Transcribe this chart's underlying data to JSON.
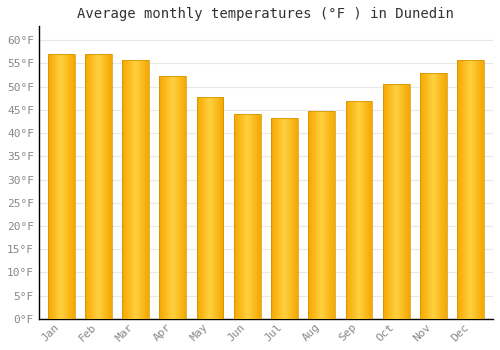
{
  "months": [
    "Jan",
    "Feb",
    "Mar",
    "Apr",
    "May",
    "Jun",
    "Jul",
    "Aug",
    "Sep",
    "Oct",
    "Nov",
    "Dec"
  ],
  "values": [
    57.0,
    57.0,
    55.8,
    52.2,
    47.8,
    44.2,
    43.2,
    44.8,
    47.0,
    50.5,
    53.0,
    55.8
  ],
  "background_color": "#FFFFFF",
  "grid_color": "#E8E8E8",
  "bar_left_color": "#F5A800",
  "bar_center_color": "#FFD040",
  "bar_right_color": "#F5A800",
  "spine_color": "#000000",
  "tick_color": "#888888",
  "title": "Average monthly temperatures (°F ) in Dunedin",
  "ylim": [
    0,
    63
  ],
  "yticks": [
    0,
    5,
    10,
    15,
    20,
    25,
    30,
    35,
    40,
    45,
    50,
    55,
    60
  ],
  "ytick_labels": [
    "0°F",
    "5°F",
    "10°F",
    "15°F",
    "20°F",
    "25°F",
    "30°F",
    "35°F",
    "40°F",
    "45°F",
    "50°F",
    "55°F",
    "60°F"
  ],
  "title_fontsize": 10,
  "tick_fontsize": 8,
  "bar_width": 0.72,
  "n_gradient_strips": 40
}
